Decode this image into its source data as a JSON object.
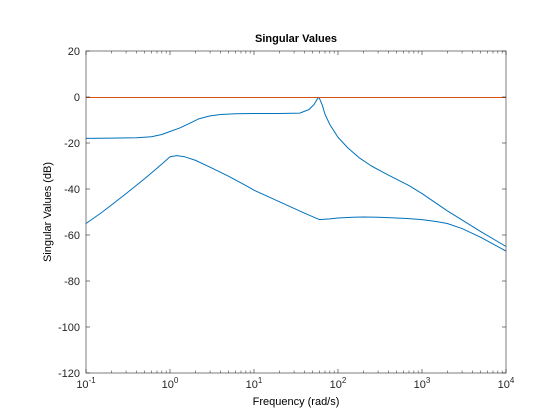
{
  "chart_data": {
    "type": "line",
    "title": "Singular Values",
    "xlabel": "Frequency (rad/s)",
    "ylabel": "Singular Values (dB)",
    "x_scale": "log",
    "xlim": [
      0.1,
      10000
    ],
    "ylim": [
      -120,
      20
    ],
    "x_ticks": [
      0.1,
      1,
      10,
      100,
      1000,
      10000
    ],
    "x_tick_labels": [
      {
        "base": "10",
        "exp": "-1"
      },
      {
        "base": "10",
        "exp": "0"
      },
      {
        "base": "10",
        "exp": "1"
      },
      {
        "base": "10",
        "exp": "2"
      },
      {
        "base": "10",
        "exp": "3"
      },
      {
        "base": "10",
        "exp": "4"
      }
    ],
    "y_ticks": [
      20,
      0,
      -20,
      -40,
      -60,
      -80,
      -100,
      -120
    ],
    "y_tick_labels": [
      "20",
      "0",
      "-20",
      "-40",
      "-60",
      "-80",
      "-100",
      "-120"
    ],
    "grid": false,
    "series": [
      {
        "color": "#0072BD",
        "x": [
          0.1,
          0.2,
          0.4,
          0.6,
          0.8,
          1.0,
          1.3,
          1.7,
          2.2,
          3.0,
          4.0,
          6.0,
          10,
          20,
          35,
          45,
          52,
          56,
          58,
          60,
          65,
          70,
          80,
          100,
          130,
          180,
          250,
          400,
          700,
          1000,
          2000,
          5000,
          10000
        ],
        "y": [
          -18,
          -17.9,
          -17.7,
          -17.3,
          -16.3,
          -15,
          -13.5,
          -11.5,
          -9.5,
          -8.2,
          -7.6,
          -7.3,
          -7.2,
          -7.2,
          -7,
          -5.5,
          -3.2,
          -1.2,
          -0.3,
          -0.5,
          -3.5,
          -7.5,
          -12,
          -17.5,
          -22,
          -26.5,
          -30,
          -34,
          -38.5,
          -42,
          -49.5,
          -58.5,
          -65
        ]
      },
      {
        "color": "#0072BD",
        "x": [
          0.1,
          0.15,
          0.2,
          0.3,
          0.5,
          0.7,
          0.9,
          1.0,
          1.2,
          1.5,
          2.0,
          3.0,
          5.0,
          8.0,
          10,
          20,
          40,
          60,
          80,
          100,
          150,
          200,
          300,
          500,
          700,
          1000,
          1500,
          2000,
          3000,
          5000,
          10000
        ],
        "y": [
          -55,
          -50.5,
          -47,
          -42,
          -35.5,
          -31,
          -27.5,
          -26,
          -25.5,
          -26,
          -27.5,
          -30.5,
          -34.5,
          -38.5,
          -40.5,
          -45.5,
          -50.5,
          -53.3,
          -53,
          -52.6,
          -52.3,
          -52.2,
          -52.3,
          -52.6,
          -52.9,
          -53.3,
          -54.2,
          -55,
          -57.2,
          -61,
          -67
        ]
      },
      {
        "color": "#D95319",
        "x": [
          0.1,
          10000
        ],
        "y": [
          -0.2,
          -0.2
        ]
      }
    ]
  }
}
